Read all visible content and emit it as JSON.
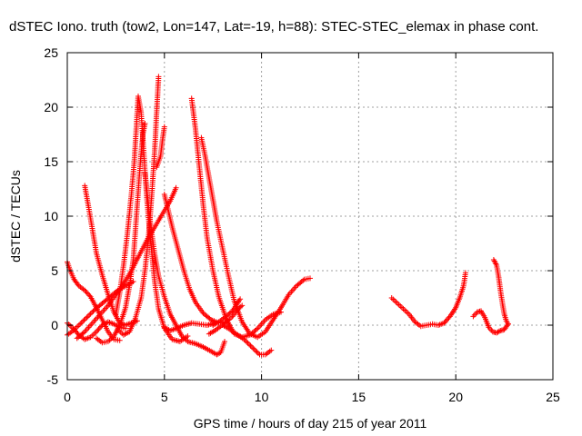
{
  "chart_data": {
    "type": "scatter",
    "title": "dSTEC Iono. truth (tow2, Lon=147, Lat=-19, h=88): STEC-STEC_elemax in phase cont.",
    "xlabel": "GPS time / hours of day 215 of year 2011",
    "ylabel": "dSTEC  / TECUs",
    "xlim": [
      0,
      25
    ],
    "ylim": [
      -5,
      25
    ],
    "xticks": [
      "0",
      "5",
      "10",
      "15",
      "20",
      "25"
    ],
    "yticks": [
      "-5",
      "0",
      "5",
      "10",
      "15",
      "20",
      "25"
    ],
    "grid": true,
    "marker": "+",
    "color": "#ff0000",
    "series": [
      {
        "points": [
          [
            0.0,
            5.8
          ],
          [
            0.15,
            5.0
          ],
          [
            0.35,
            4.2
          ],
          [
            0.6,
            3.6
          ],
          [
            0.9,
            3.2
          ],
          [
            1.2,
            2.6
          ],
          [
            1.5,
            1.6
          ],
          [
            1.8,
            0.5
          ],
          [
            2.1,
            -0.6
          ],
          [
            2.4,
            -1.3
          ],
          [
            2.7,
            -1.4
          ]
        ]
      },
      {
        "points": [
          [
            0.0,
            0.2
          ],
          [
            0.3,
            -0.3
          ],
          [
            0.6,
            -0.9
          ],
          [
            0.9,
            -1.3
          ],
          [
            1.2,
            -1.1
          ],
          [
            1.5,
            -0.6
          ],
          [
            1.8,
            0.0
          ],
          [
            2.1,
            0.3
          ],
          [
            2.4,
            0.1
          ],
          [
            2.7,
            -0.2
          ],
          [
            3.0,
            -0.3
          ]
        ]
      },
      {
        "points": [
          [
            0.0,
            -0.9
          ],
          [
            0.3,
            -0.5
          ],
          [
            0.6,
            0.0
          ],
          [
            1.0,
            0.7
          ],
          [
            1.4,
            1.4
          ],
          [
            1.8,
            2.0
          ],
          [
            2.2,
            2.6
          ],
          [
            2.6,
            3.2
          ],
          [
            3.0,
            3.6
          ],
          [
            3.4,
            4.0
          ]
        ]
      },
      {
        "points": [
          [
            0.5,
            -1.2
          ],
          [
            0.9,
            -0.6
          ],
          [
            1.3,
            0.2
          ],
          [
            1.7,
            1.0
          ],
          [
            2.1,
            1.8
          ],
          [
            2.5,
            2.8
          ],
          [
            2.9,
            3.8
          ],
          [
            3.3,
            5.0
          ],
          [
            3.7,
            6.4
          ],
          [
            4.1,
            7.8
          ],
          [
            4.5,
            9.0
          ],
          [
            4.9,
            10.2
          ],
          [
            5.3,
            11.4
          ],
          [
            5.6,
            12.6
          ]
        ]
      },
      {
        "points": [
          [
            0.9,
            12.8
          ],
          [
            1.1,
            10.8
          ],
          [
            1.3,
            8.7
          ],
          [
            1.5,
            6.6
          ],
          [
            1.8,
            4.6
          ],
          [
            2.1,
            2.8
          ],
          [
            2.4,
            1.2
          ],
          [
            2.7,
            0.2
          ],
          [
            3.0,
            0.0
          ],
          [
            3.3,
            0.2
          ],
          [
            3.6,
            0.4
          ]
        ]
      },
      {
        "points": [
          [
            1.5,
            -1.2
          ],
          [
            1.8,
            -1.6
          ],
          [
            2.1,
            -1.5
          ],
          [
            2.4,
            -1.0
          ],
          [
            2.7,
            0.0
          ],
          [
            3.0,
            1.6
          ],
          [
            3.2,
            3.6
          ],
          [
            3.4,
            6.0
          ],
          [
            3.5,
            8.5
          ],
          [
            3.6,
            11.0
          ],
          [
            3.7,
            13.5
          ],
          [
            3.8,
            15.8
          ],
          [
            3.9,
            17.6
          ],
          [
            4.0,
            18.5
          ]
        ]
      },
      {
        "points": [
          [
            2.5,
            1.0
          ],
          [
            2.7,
            3.0
          ],
          [
            2.9,
            5.5
          ],
          [
            3.1,
            8.5
          ],
          [
            3.3,
            12.0
          ],
          [
            3.45,
            15.0
          ],
          [
            3.55,
            18.0
          ],
          [
            3.65,
            21.0
          ],
          [
            3.8,
            19.5
          ],
          [
            3.95,
            15.5
          ],
          [
            4.1,
            11.5
          ],
          [
            4.3,
            7.5
          ],
          [
            4.5,
            4.0
          ],
          [
            4.7,
            1.5
          ],
          [
            5.0,
            -0.3
          ],
          [
            5.4,
            -1.3
          ],
          [
            5.8,
            -1.5
          ],
          [
            6.2,
            -1.0
          ]
        ]
      },
      {
        "points": [
          [
            2.6,
            -0.4
          ],
          [
            2.9,
            -0.9
          ],
          [
            3.2,
            -0.6
          ],
          [
            3.5,
            0.6
          ],
          [
            3.8,
            2.5
          ],
          [
            4.0,
            5.0
          ],
          [
            4.2,
            8.5
          ],
          [
            4.35,
            12.0
          ],
          [
            4.5,
            16.0
          ],
          [
            4.6,
            19.5
          ],
          [
            4.7,
            22.8
          ]
        ]
      },
      {
        "points": [
          [
            4.0,
            14.0
          ],
          [
            4.15,
            11.5
          ],
          [
            4.3,
            9.0
          ],
          [
            4.5,
            6.5
          ],
          [
            4.7,
            4.5
          ],
          [
            5.0,
            2.6
          ],
          [
            5.3,
            1.0
          ],
          [
            5.6,
            0.0
          ],
          [
            5.9,
            -1.0
          ],
          [
            6.2,
            -1.5
          ],
          [
            6.6,
            -1.7
          ],
          [
            7.0,
            -2.0
          ],
          [
            7.4,
            -2.4
          ],
          [
            7.7,
            -2.7
          ],
          [
            7.9,
            -2.5
          ],
          [
            8.1,
            -1.5
          ]
        ]
      },
      {
        "points": [
          [
            4.6,
            14.5
          ],
          [
            4.8,
            15.5
          ],
          [
            4.9,
            17.0
          ],
          [
            5.0,
            18.2
          ]
        ]
      },
      {
        "points": [
          [
            5.0,
            12.0
          ],
          [
            5.2,
            10.5
          ],
          [
            5.4,
            9.0
          ],
          [
            5.7,
            7.0
          ],
          [
            6.0,
            5.0
          ],
          [
            6.3,
            3.3
          ],
          [
            6.6,
            2.1
          ],
          [
            7.0,
            1.1
          ],
          [
            7.4,
            0.5
          ],
          [
            7.8,
            0.2
          ],
          [
            8.2,
            0.3
          ]
        ]
      },
      {
        "points": [
          [
            5.0,
            -0.2
          ],
          [
            5.3,
            -0.5
          ],
          [
            5.6,
            -0.3
          ],
          [
            6.0,
            0.0
          ],
          [
            6.4,
            0.2
          ],
          [
            6.8,
            0.1
          ],
          [
            7.2,
            0.0
          ],
          [
            7.6,
            0.2
          ]
        ]
      },
      {
        "points": [
          [
            6.4,
            20.8
          ],
          [
            6.6,
            18.0
          ],
          [
            6.8,
            14.5
          ],
          [
            7.0,
            11.0
          ],
          [
            7.2,
            8.0
          ],
          [
            7.5,
            5.0
          ],
          [
            7.8,
            2.6
          ],
          [
            8.2,
            0.5
          ],
          [
            8.6,
            -0.8
          ],
          [
            9.0,
            -1.1
          ],
          [
            9.4,
            -0.9
          ],
          [
            9.8,
            -0.3
          ],
          [
            10.2,
            0.5
          ],
          [
            10.6,
            1.0
          ],
          [
            11.0,
            1.2
          ]
        ]
      },
      {
        "points": [
          [
            6.9,
            17.2
          ],
          [
            7.1,
            15.5
          ],
          [
            7.3,
            13.5
          ],
          [
            7.5,
            11.5
          ],
          [
            7.7,
            9.5
          ],
          [
            8.0,
            7.0
          ],
          [
            8.3,
            4.5
          ],
          [
            8.6,
            2.2
          ],
          [
            9.0,
            0.3
          ],
          [
            9.4,
            -0.8
          ],
          [
            9.8,
            -1.1
          ],
          [
            10.2,
            -0.6
          ],
          [
            10.6,
            0.5
          ],
          [
            11.0,
            1.6
          ],
          [
            11.4,
            2.8
          ],
          [
            11.8,
            3.6
          ],
          [
            12.2,
            4.2
          ],
          [
            12.5,
            4.3
          ]
        ]
      },
      {
        "points": [
          [
            7.5,
            0.0
          ],
          [
            7.8,
            0.3
          ],
          [
            8.1,
            0.7
          ],
          [
            8.5,
            1.3
          ],
          [
            8.9,
            2.4
          ]
        ]
      },
      {
        "points": [
          [
            8.0,
            0.0
          ],
          [
            8.3,
            -0.3
          ],
          [
            8.7,
            -0.8
          ],
          [
            9.1,
            -1.3
          ],
          [
            9.5,
            -2.0
          ],
          [
            9.9,
            -2.7
          ],
          [
            10.2,
            -2.7
          ],
          [
            10.5,
            -2.3
          ]
        ]
      },
      {
        "points": [
          [
            7.3,
            -0.8
          ],
          [
            7.6,
            -0.5
          ],
          [
            7.9,
            -0.1
          ],
          [
            8.2,
            0.3
          ],
          [
            8.5,
            0.8
          ],
          [
            8.8,
            1.5
          ],
          [
            9.0,
            1.8
          ]
        ]
      },
      {
        "points": [
          [
            16.7,
            2.5
          ],
          [
            17.0,
            2.0
          ],
          [
            17.3,
            1.5
          ],
          [
            17.6,
            1.0
          ],
          [
            17.9,
            0.3
          ],
          [
            18.2,
            -0.1
          ],
          [
            18.5,
            0.0
          ],
          [
            18.8,
            0.1
          ],
          [
            19.1,
            0.0
          ],
          [
            19.4,
            0.2
          ],
          [
            19.7,
            0.8
          ],
          [
            20.0,
            1.6
          ],
          [
            20.2,
            2.5
          ],
          [
            20.4,
            3.6
          ],
          [
            20.5,
            4.8
          ]
        ]
      },
      {
        "points": [
          [
            20.9,
            0.8
          ],
          [
            21.1,
            1.2
          ],
          [
            21.3,
            1.3
          ],
          [
            21.5,
            0.7
          ],
          [
            21.7,
            -0.2
          ],
          [
            21.9,
            -0.6
          ],
          [
            22.1,
            -0.7
          ],
          [
            22.3,
            -0.5
          ],
          [
            22.5,
            -0.4
          ],
          [
            22.7,
            0.1
          ]
        ]
      },
      {
        "points": [
          [
            21.95,
            6.0
          ],
          [
            22.1,
            5.5
          ],
          [
            22.2,
            4.5
          ],
          [
            22.3,
            3.2
          ],
          [
            22.4,
            2.0
          ],
          [
            22.5,
            1.0
          ],
          [
            22.6,
            0.4
          ],
          [
            22.7,
            0.1
          ]
        ]
      }
    ]
  }
}
